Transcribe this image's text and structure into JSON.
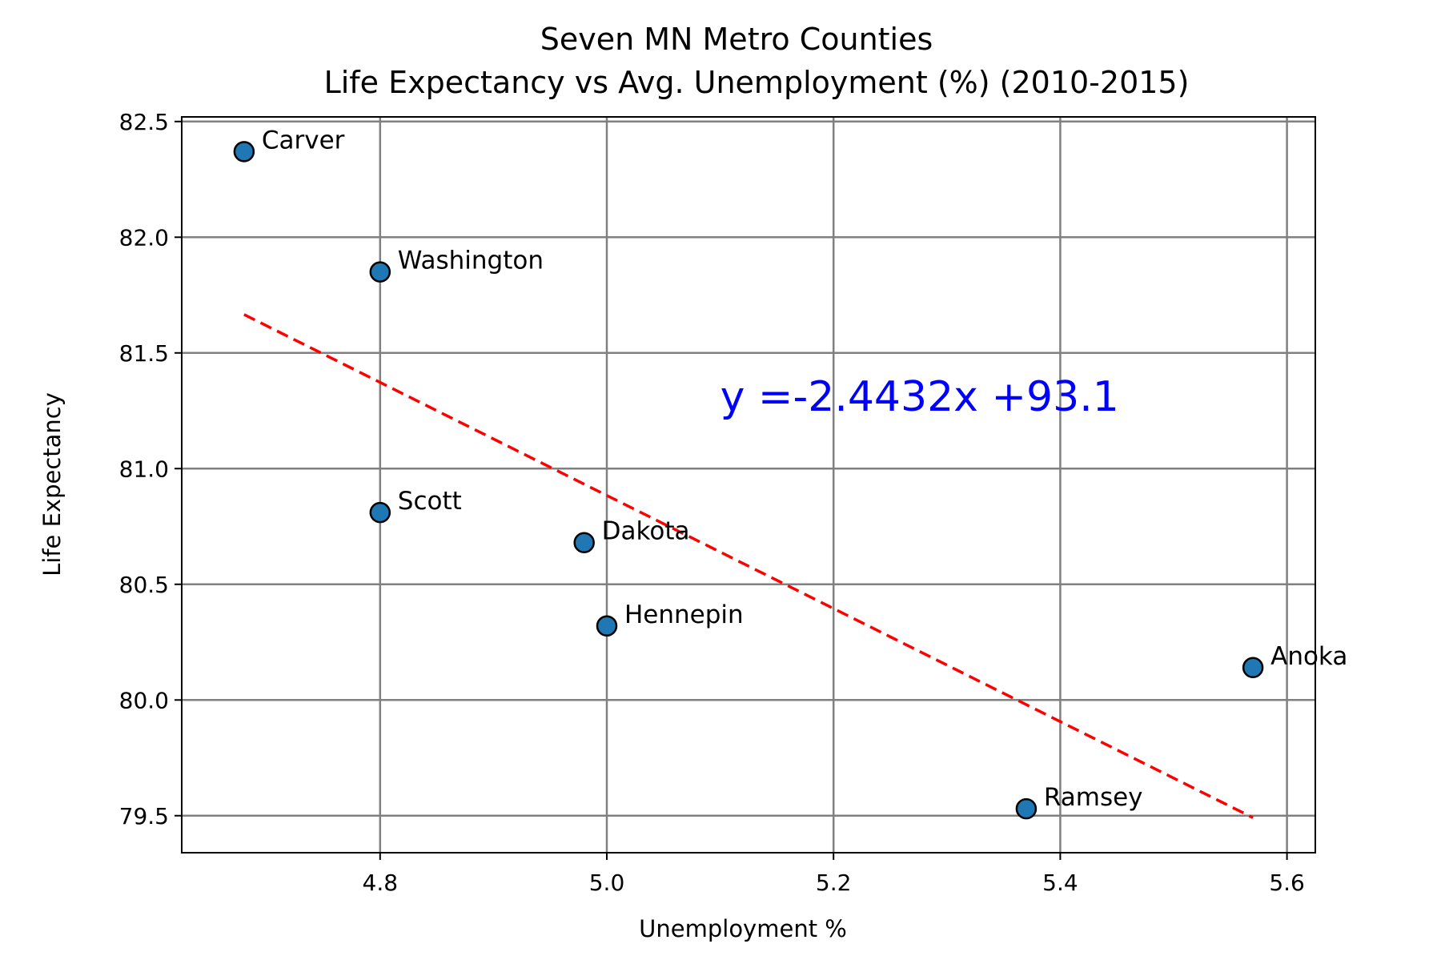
{
  "chart_data": {
    "type": "scatter",
    "title": "Seven MN Metro Counties",
    "subtitle": "Life Expectancy vs Avg. Unemployment (%) (2010-2015)",
    "xlabel": "Unemployment %",
    "ylabel": "Life Expectancy",
    "xlim": [
      4.625,
      5.625
    ],
    "ylim": [
      79.34,
      82.52
    ],
    "x_ticks": [
      "4.8",
      "5.0",
      "5.2",
      "5.4",
      "5.6"
    ],
    "y_ticks": [
      "79.5",
      "80.0",
      "80.5",
      "81.0",
      "81.5",
      "82.0",
      "82.5"
    ],
    "grid": true,
    "points": [
      {
        "label": "Carver",
        "x": 4.68,
        "y": 82.37
      },
      {
        "label": "Washington",
        "x": 4.8,
        "y": 81.85
      },
      {
        "label": "Scott",
        "x": 4.8,
        "y": 80.81
      },
      {
        "label": "Dakota",
        "x": 4.98,
        "y": 80.68
      },
      {
        "label": "Hennepin",
        "x": 5.0,
        "y": 80.32
      },
      {
        "label": "Anoka",
        "x": 5.57,
        "y": 80.14
      },
      {
        "label": "Ramsey",
        "x": 5.37,
        "y": 79.53
      }
    ],
    "regression": {
      "slope": -2.4432,
      "intercept": 93.1,
      "x_range": [
        4.68,
        5.57
      ],
      "equation": "y =-2.4432x +93.1",
      "equation_position": {
        "x": 5.1,
        "y": 81.25
      }
    },
    "colors": {
      "marker_fill": "#1f77b4",
      "marker_edge": "#000000",
      "regression_line": "#ff0000",
      "equation_text": "#0000ff",
      "grid": "#808080"
    }
  }
}
